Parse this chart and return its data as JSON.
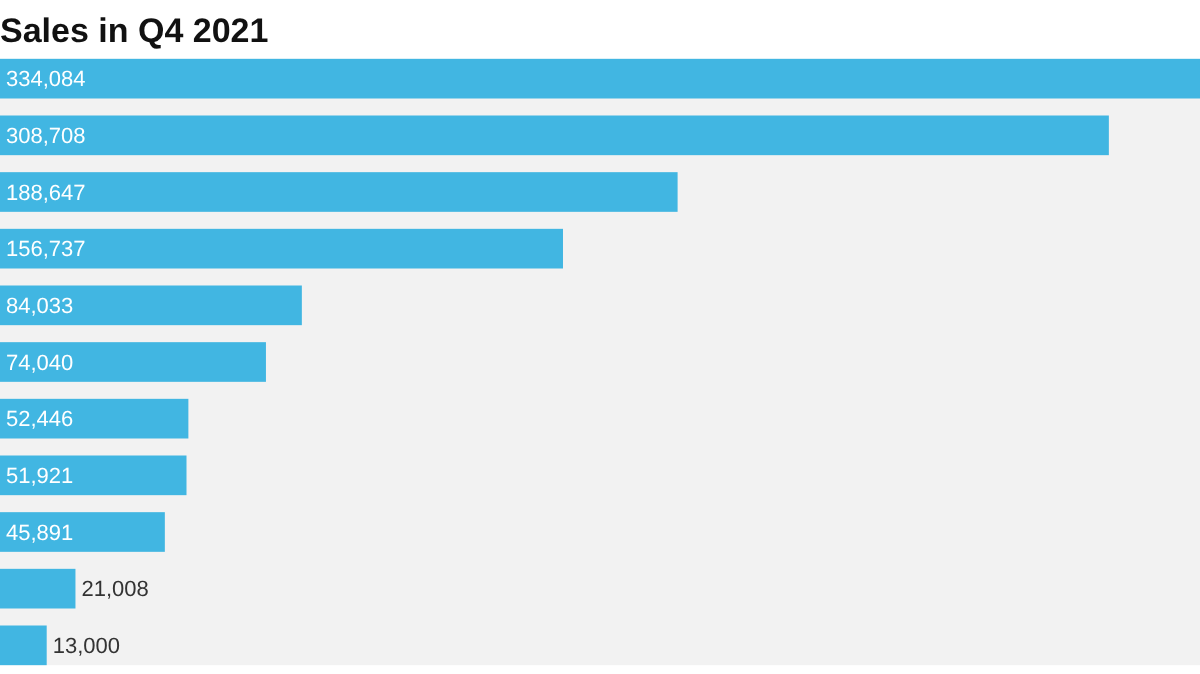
{
  "chart_data": {
    "type": "bar",
    "orientation": "horizontal",
    "title": "Sales in Q4 2021",
    "categories": [
      null,
      null,
      null,
      null,
      null,
      null,
      null,
      null,
      null,
      null,
      null
    ],
    "values": [
      334084,
      308708,
      188647,
      156737,
      84033,
      74040,
      52446,
      51921,
      45891,
      21008,
      13000
    ],
    "value_labels": [
      "334,084",
      "308,708",
      "188,647",
      "156,737",
      "84,033",
      "74,040",
      "52,446",
      "51,921",
      "45,891",
      "21,008",
      "13,000"
    ],
    "color": "#41b6e2"
  }
}
